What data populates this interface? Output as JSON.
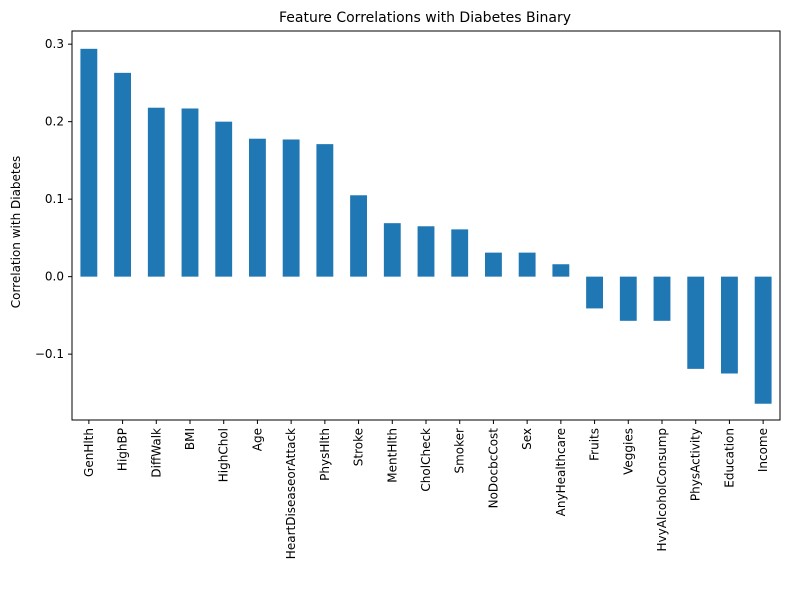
{
  "chart_data": {
    "type": "bar",
    "title": "Feature Correlations with Diabetes Binary",
    "xlabel": "",
    "ylabel": "Correlation with Diabetes",
    "categories": [
      "GenHlth",
      "HighBP",
      "DiffWalk",
      "BMI",
      "HighChol",
      "Age",
      "HeartDiseaseorAttack",
      "PhysHlth",
      "Stroke",
      "MentHlth",
      "CholCheck",
      "Smoker",
      "NoDocbcCost",
      "Sex",
      "AnyHealthcare",
      "Fruits",
      "Veggies",
      "HvyAlcoholConsump",
      "PhysActivity",
      "Education",
      "Income"
    ],
    "values": [
      0.294,
      0.263,
      0.218,
      0.217,
      0.2,
      0.178,
      0.177,
      0.171,
      0.105,
      0.069,
      0.065,
      0.061,
      0.031,
      0.031,
      0.016,
      -0.041,
      -0.057,
      -0.057,
      -0.119,
      -0.125,
      -0.164
    ],
    "ylim": [
      -0.185,
      0.317
    ],
    "yticks": [
      -0.1,
      0.0,
      0.1,
      0.2,
      0.3
    ],
    "ytick_labels": [
      "−0.1",
      "0.0",
      "0.1",
      "0.2",
      "0.3"
    ],
    "bar_color": "#1f77b4",
    "grid": false,
    "legend": "none"
  }
}
